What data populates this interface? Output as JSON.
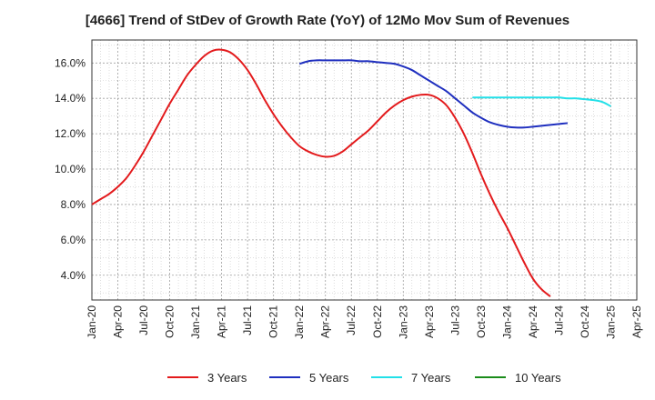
{
  "chart_data": {
    "type": "line",
    "title": "[4666]  Trend of StDev of Growth Rate (YoY) of 12Mo Mov Sum of Revenues",
    "xlabel": "",
    "ylabel": "",
    "x_ticks": [
      "Jan-20",
      "Apr-20",
      "Jul-20",
      "Oct-20",
      "Jan-21",
      "Apr-21",
      "Jul-21",
      "Oct-21",
      "Jan-22",
      "Apr-22",
      "Jul-22",
      "Oct-22",
      "Jan-23",
      "Apr-23",
      "Jul-23",
      "Oct-23",
      "Jan-24",
      "Apr-24",
      "Jul-24",
      "Oct-24",
      "Jan-25",
      "Apr-25"
    ],
    "y_ticks": [
      "4.0%",
      "6.0%",
      "8.0%",
      "10.0%",
      "12.0%",
      "14.0%",
      "16.0%"
    ],
    "ylim": [
      2.6,
      17.3
    ],
    "grid": true,
    "legend_position": "bottom",
    "series": [
      {
        "name": "3 Years",
        "color": "#e31a1c",
        "points": [
          [
            "Jan-20",
            8.0
          ],
          [
            "Feb-20",
            8.3
          ],
          [
            "Mar-20",
            8.6
          ],
          [
            "Apr-20",
            9.0
          ],
          [
            "May-20",
            9.5
          ],
          [
            "Jun-20",
            10.2
          ],
          [
            "Jul-20",
            11.0
          ],
          [
            "Aug-20",
            11.9
          ],
          [
            "Sep-20",
            12.8
          ],
          [
            "Oct-20",
            13.7
          ],
          [
            "Nov-20",
            14.5
          ],
          [
            "Dec-20",
            15.3
          ],
          [
            "Jan-21",
            15.9
          ],
          [
            "Feb-21",
            16.4
          ],
          [
            "Mar-21",
            16.7
          ],
          [
            "Apr-21",
            16.75
          ],
          [
            "May-21",
            16.6
          ],
          [
            "Jun-21",
            16.2
          ],
          [
            "Jul-21",
            15.6
          ],
          [
            "Aug-21",
            14.8
          ],
          [
            "Sep-21",
            13.9
          ],
          [
            "Oct-21",
            13.1
          ],
          [
            "Nov-21",
            12.4
          ],
          [
            "Dec-21",
            11.8
          ],
          [
            "Jan-22",
            11.3
          ],
          [
            "Feb-22",
            11.0
          ],
          [
            "Mar-22",
            10.8
          ],
          [
            "Apr-22",
            10.7
          ],
          [
            "May-22",
            10.75
          ],
          [
            "Jun-22",
            11.0
          ],
          [
            "Jul-22",
            11.4
          ],
          [
            "Aug-22",
            11.8
          ],
          [
            "Sep-22",
            12.2
          ],
          [
            "Oct-22",
            12.7
          ],
          [
            "Nov-22",
            13.2
          ],
          [
            "Dec-22",
            13.6
          ],
          [
            "Jan-23",
            13.9
          ],
          [
            "Feb-23",
            14.1
          ],
          [
            "Mar-23",
            14.2
          ],
          [
            "Apr-23",
            14.2
          ],
          [
            "May-23",
            14.0
          ],
          [
            "Jun-23",
            13.6
          ],
          [
            "Jul-23",
            12.9
          ],
          [
            "Aug-23",
            12.0
          ],
          [
            "Sep-23",
            10.9
          ],
          [
            "Oct-23",
            9.7
          ],
          [
            "Nov-23",
            8.6
          ],
          [
            "Dec-23",
            7.6
          ],
          [
            "Jan-24",
            6.7
          ],
          [
            "Feb-24",
            5.7
          ],
          [
            "Mar-24",
            4.7
          ],
          [
            "Apr-24",
            3.8
          ],
          [
            "May-24",
            3.2
          ],
          [
            "Jun-24",
            2.8
          ]
        ]
      },
      {
        "name": "5 Years",
        "color": "#1f2fbf",
        "points": [
          [
            "Jan-22",
            15.95
          ],
          [
            "Feb-22",
            16.1
          ],
          [
            "Mar-22",
            16.15
          ],
          [
            "Apr-22",
            16.15
          ],
          [
            "May-22",
            16.15
          ],
          [
            "Jun-22",
            16.15
          ],
          [
            "Jul-22",
            16.15
          ],
          [
            "Aug-22",
            16.1
          ],
          [
            "Sep-22",
            16.1
          ],
          [
            "Oct-22",
            16.05
          ],
          [
            "Nov-22",
            16.0
          ],
          [
            "Dec-22",
            15.95
          ],
          [
            "Jan-23",
            15.8
          ],
          [
            "Feb-23",
            15.6
          ],
          [
            "Mar-23",
            15.3
          ],
          [
            "Apr-23",
            15.0
          ],
          [
            "May-23",
            14.7
          ],
          [
            "Jun-23",
            14.4
          ],
          [
            "Jul-23",
            14.0
          ],
          [
            "Aug-23",
            13.6
          ],
          [
            "Sep-23",
            13.2
          ],
          [
            "Oct-23",
            12.9
          ],
          [
            "Nov-23",
            12.65
          ],
          [
            "Dec-23",
            12.5
          ],
          [
            "Jan-24",
            12.4
          ],
          [
            "Feb-24",
            12.35
          ],
          [
            "Mar-24",
            12.35
          ],
          [
            "Apr-24",
            12.4
          ],
          [
            "May-24",
            12.45
          ],
          [
            "Jun-24",
            12.5
          ],
          [
            "Jul-24",
            12.55
          ],
          [
            "Aug-24",
            12.6
          ]
        ]
      },
      {
        "name": "7 Years",
        "color": "#22e0e8",
        "points": [
          [
            "Sep-23",
            14.05
          ],
          [
            "Oct-23",
            14.05
          ],
          [
            "Nov-23",
            14.05
          ],
          [
            "Dec-23",
            14.05
          ],
          [
            "Jan-24",
            14.05
          ],
          [
            "Feb-24",
            14.05
          ],
          [
            "Mar-24",
            14.05
          ],
          [
            "Apr-24",
            14.05
          ],
          [
            "May-24",
            14.05
          ],
          [
            "Jun-24",
            14.05
          ],
          [
            "Jul-24",
            14.05
          ],
          [
            "Aug-24",
            14.0
          ],
          [
            "Sep-24",
            14.0
          ],
          [
            "Oct-24",
            13.95
          ],
          [
            "Nov-24",
            13.9
          ],
          [
            "Dec-24",
            13.8
          ],
          [
            "Jan-25",
            13.55
          ]
        ]
      },
      {
        "name": "10 Years",
        "color": "#1a8c1a",
        "points": []
      }
    ]
  }
}
